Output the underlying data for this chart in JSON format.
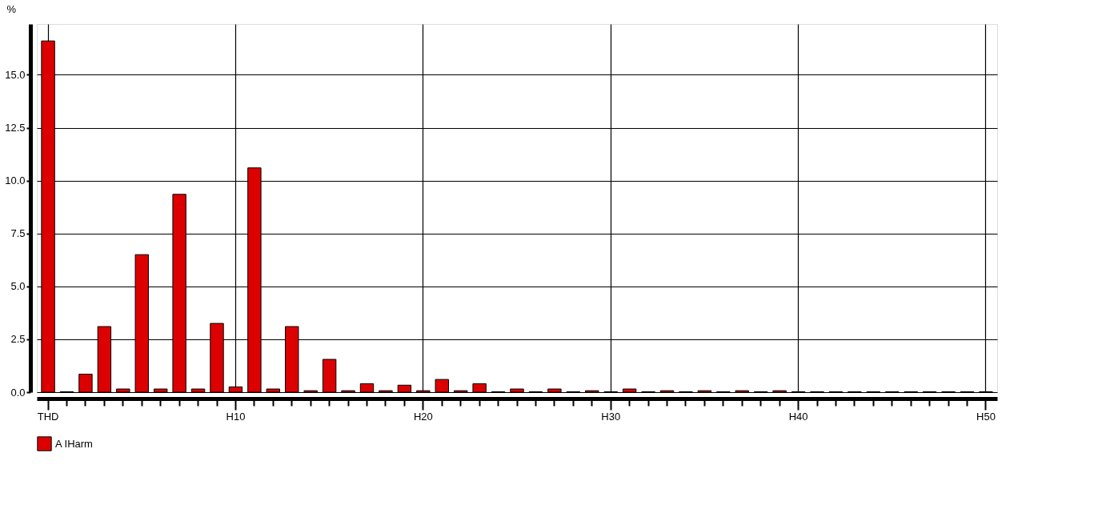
{
  "chart_data": {
    "type": "bar",
    "ylabel": "%",
    "categories": [
      "THD",
      null,
      null,
      null,
      null,
      null,
      null,
      null,
      null,
      null,
      "H10",
      null,
      null,
      null,
      null,
      null,
      null,
      null,
      null,
      null,
      "H20",
      null,
      null,
      null,
      null,
      null,
      null,
      null,
      null,
      null,
      "H30",
      null,
      null,
      null,
      null,
      null,
      null,
      null,
      null,
      null,
      "H40",
      null,
      null,
      null,
      null,
      null,
      null,
      null,
      null,
      null,
      "H50"
    ],
    "series": [
      {
        "name": "A IHarm",
        "color": "#dd0000",
        "values": [
          16.6,
          0.02,
          0.85,
          3.1,
          0.15,
          6.5,
          0.15,
          9.35,
          0.15,
          3.25,
          0.25,
          10.6,
          0.15,
          3.1,
          0.07,
          1.55,
          0.07,
          0.4,
          0.07,
          0.33,
          0.07,
          0.6,
          0.07,
          0.4,
          0.02,
          0.15,
          0.02,
          0.15,
          0.02,
          0.07,
          0.02,
          0.15,
          0.02,
          0.07,
          0.02,
          0.07,
          0.02,
          0.07,
          0.02,
          0.07,
          0.02,
          0.02,
          0.02,
          0.02,
          0.02,
          0.02,
          0.02,
          0.02,
          0.02,
          0.02,
          0.02
        ]
      }
    ],
    "ylim": [
      0,
      17.4
    ],
    "yticks": [
      {
        "value": 0,
        "label": "0.0"
      },
      2.5,
      {
        "value": 5,
        "label": "5.0"
      },
      7.5,
      {
        "value": 10,
        "label": "10.0"
      },
      12.5,
      {
        "value": 15,
        "label": "15.0"
      }
    ],
    "grid": true,
    "legend": "bottom"
  }
}
